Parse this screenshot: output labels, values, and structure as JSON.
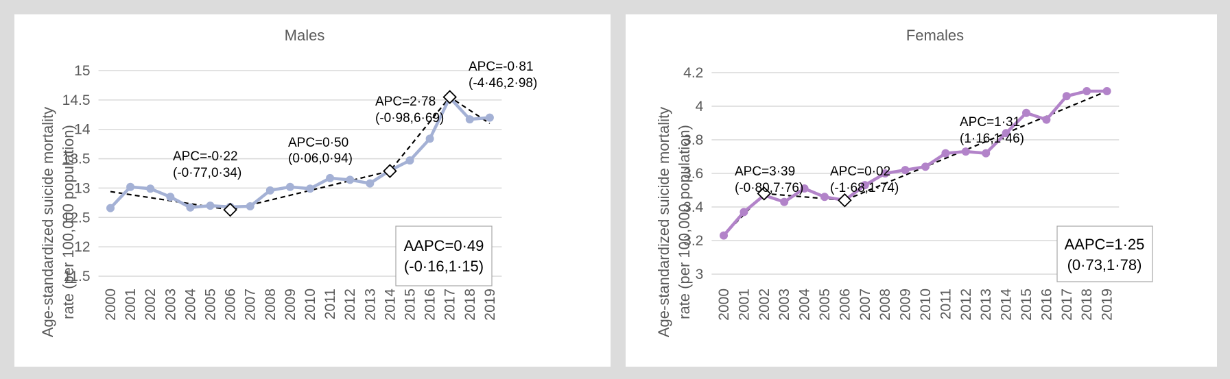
{
  "chart_data": [
    {
      "type": "line",
      "title": "Males",
      "ylabel_lines": [
        "Age-standardized suicide mortality",
        "rate (per 100,000 population)"
      ],
      "ylim": [
        11.5,
        15
      ],
      "yticks": [
        "11.5",
        "12",
        "12.5",
        "13",
        "13.5",
        "14",
        "14.5",
        "15"
      ],
      "categories": [
        "2000",
        "2001",
        "2002",
        "2003",
        "2004",
        "2005",
        "2006",
        "2007",
        "2008",
        "2009",
        "2010",
        "2011",
        "2012",
        "2013",
        "2014",
        "2015",
        "2016",
        "2017",
        "2018",
        "2019"
      ],
      "series": [
        {
          "values": [
            12.66,
            13.02,
            12.99,
            12.85,
            12.67,
            12.7,
            12.68,
            12.69,
            12.96,
            13.02,
            12.99,
            13.17,
            13.14,
            13.08,
            13.3,
            13.47,
            13.84,
            14.54,
            14.17,
            14.2
          ]
        },
        {
          "values": [
            12.94,
            null,
            null,
            null,
            null,
            null,
            12.63,
            null,
            null,
            null,
            null,
            null,
            null,
            null,
            13.29,
            null,
            null,
            14.55,
            null,
            14.1
          ]
        }
      ],
      "joinpoints": [
        "2006",
        "2014",
        "2017"
      ],
      "annotations": [
        {
          "lines": [
            "APC=-0·22",
            "(-0·77,0·34)"
          ]
        },
        {
          "lines": [
            "APC=0·50",
            "(0·06,0·94)"
          ]
        },
        {
          "lines": [
            "APC=2·78",
            "(-0·98,6·69)"
          ]
        },
        {
          "lines": [
            "APC=-0·81",
            "(-4·46,2·98)"
          ]
        }
      ],
      "summary_box": {
        "lines": [
          "AAPC=0·49",
          "(-0·16,1·15)"
        ]
      },
      "colors": {
        "data_line": "#a4b1d5",
        "trend_line": "#000000",
        "grid": "#d9d9d9",
        "text": "#595959"
      },
      "grid": true
    },
    {
      "type": "line",
      "title": "Females",
      "ylabel_lines": [
        "Age-standardized suicide mortality",
        "rate (per 100,000 population)"
      ],
      "ylim": [
        3,
        4.2
      ],
      "yticks": [
        "3",
        "3.2",
        "3.4",
        "3.6",
        "3.8",
        "4",
        "4.2"
      ],
      "categories": [
        "2000",
        "2001",
        "2002",
        "2003",
        "2004",
        "2005",
        "2006",
        "2007",
        "2008",
        "2009",
        "2010",
        "2011",
        "2012",
        "2013",
        "2014",
        "2015",
        "2016",
        "2017",
        "2018",
        "2019"
      ],
      "series": [
        {
          "values": [
            3.23,
            3.37,
            3.47,
            3.43,
            3.51,
            3.46,
            3.44,
            3.53,
            3.6,
            3.62,
            3.64,
            3.72,
            3.73,
            3.72,
            3.84,
            3.96,
            3.92,
            4.06,
            4.09,
            4.09
          ]
        },
        {
          "values": [
            3.23,
            null,
            3.48,
            null,
            null,
            null,
            3.44,
            null,
            null,
            null,
            null,
            null,
            null,
            null,
            null,
            null,
            null,
            null,
            null,
            4.09
          ]
        }
      ],
      "joinpoints": [
        "2002",
        "2006"
      ],
      "annotations": [
        {
          "lines": [
            "APC=3·39",
            "(-0·80,7·76)"
          ]
        },
        {
          "lines": [
            "APC=0·02",
            "(-1·68,1·74)"
          ]
        },
        {
          "lines": [
            "APC=1·31",
            "(1·16,1·46)"
          ]
        }
      ],
      "summary_box": {
        "lines": [
          "AAPC=1·25",
          "(0·73,1·78)"
        ]
      },
      "colors": {
        "data_line": "#b283c9",
        "trend_line": "#000000",
        "grid": "#d9d9d9",
        "text": "#595959"
      },
      "grid": true
    }
  ]
}
